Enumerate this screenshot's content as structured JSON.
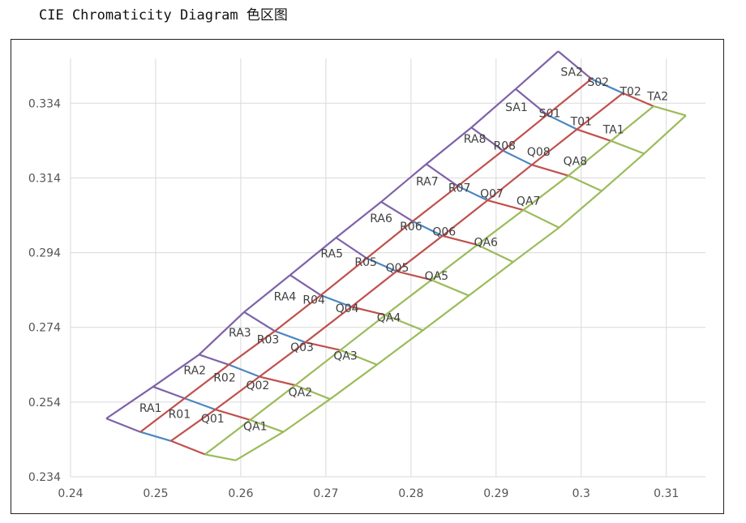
{
  "page": {
    "title": "CIE Chromaticity Diagram 色区图"
  },
  "chart_data": {
    "type": "line",
    "title": "CIE Chromaticity Diagram 色区图",
    "xlabel": "",
    "ylabel": "",
    "xlim": [
      0.24,
      0.315
    ],
    "ylim": [
      0.234,
      0.346
    ],
    "x_ticks": [
      "0.24",
      "0.25",
      "0.26",
      "0.27",
      "0.28",
      "0.29",
      "0.3",
      "0.31"
    ],
    "y_ticks": [
      "0.234",
      "0.254",
      "0.274",
      "0.294",
      "0.314",
      "0.334"
    ],
    "grid": true,
    "colors": {
      "RA": "#7e62a8",
      "R": "#4a86c0",
      "Q": "#c0504d",
      "QA": "#9bbb59",
      "grid": "#d9d9d9",
      "axis": "#d9d9d9"
    },
    "series": [
      {
        "name": "RA",
        "x": [
          0.2442,
          0.2497,
          0.2551,
          0.2604,
          0.2658,
          0.2712,
          0.2765,
          0.2818,
          0.2871,
          0.2923,
          0.2973
        ],
        "y": [
          0.2496,
          0.2581,
          0.2667,
          0.2781,
          0.288,
          0.298,
          0.3076,
          0.3177,
          0.3275,
          0.3378,
          0.3479
        ]
      },
      {
        "name": "R",
        "x": [
          0.2482,
          0.2534,
          0.2586,
          0.264,
          0.2694,
          0.2748,
          0.2802,
          0.2855,
          0.2908,
          0.296,
          0.3012
        ],
        "y": [
          0.246,
          0.255,
          0.264,
          0.273,
          0.2826,
          0.2925,
          0.3024,
          0.3118,
          0.3213,
          0.3309,
          0.3405
        ]
      },
      {
        "name": "Q",
        "x": [
          0.2518,
          0.257,
          0.2622,
          0.2676,
          0.273,
          0.2783,
          0.2837,
          0.289,
          0.2942,
          0.2995,
          0.3049
        ],
        "y": [
          0.2436,
          0.252,
          0.2608,
          0.27,
          0.2795,
          0.289,
          0.2985,
          0.308,
          0.3175,
          0.327,
          0.3367
        ]
      },
      {
        "name": "QA",
        "x": [
          0.2558,
          0.2611,
          0.2664,
          0.2717,
          0.277,
          0.2824,
          0.2878,
          0.2932,
          0.2985,
          0.3035,
          0.3085
        ],
        "y": [
          0.24,
          0.2492,
          0.2585,
          0.2679,
          0.2773,
          0.2867,
          0.2961,
          0.3054,
          0.3146,
          0.3239,
          0.3332
        ]
      },
      {
        "name": "TA",
        "x": [
          0.2594,
          0.265,
          0.2705,
          0.276,
          0.2814,
          0.2868,
          0.292,
          0.2974,
          0.3024,
          0.3074,
          0.3123
        ],
        "y": [
          0.2384,
          0.246,
          0.2548,
          0.264,
          0.2732,
          0.2825,
          0.2915,
          0.3007,
          0.3105,
          0.3205,
          0.3307
        ]
      }
    ],
    "bin_labels": [
      {
        "text": "RA1",
        "x": 0.2494,
        "y": 0.2524
      },
      {
        "text": "R01",
        "x": 0.2528,
        "y": 0.2508
      },
      {
        "text": "Q01",
        "x": 0.2567,
        "y": 0.2496
      },
      {
        "text": "QA1",
        "x": 0.2617,
        "y": 0.2476
      },
      {
        "text": "RA2",
        "x": 0.2546,
        "y": 0.2625
      },
      {
        "text": "R02",
        "x": 0.2581,
        "y": 0.2606
      },
      {
        "text": "Q02",
        "x": 0.262,
        "y": 0.2585
      },
      {
        "text": "QA2",
        "x": 0.267,
        "y": 0.2567
      },
      {
        "text": "RA3",
        "x": 0.2599,
        "y": 0.2726
      },
      {
        "text": "R03",
        "x": 0.2632,
        "y": 0.2708
      },
      {
        "text": "Q03",
        "x": 0.2672,
        "y": 0.2687
      },
      {
        "text": "QA3",
        "x": 0.2723,
        "y": 0.2665
      },
      {
        "text": "RA4",
        "x": 0.2652,
        "y": 0.2823
      },
      {
        "text": "R04",
        "x": 0.2686,
        "y": 0.2814
      },
      {
        "text": "Q04",
        "x": 0.2725,
        "y": 0.2792
      },
      {
        "text": "QA4",
        "x": 0.2774,
        "y": 0.2767
      },
      {
        "text": "RA5",
        "x": 0.2707,
        "y": 0.2938
      },
      {
        "text": "R05",
        "x": 0.2747,
        "y": 0.2915
      },
      {
        "text": "Q05",
        "x": 0.2784,
        "y": 0.29
      },
      {
        "text": "QA5",
        "x": 0.283,
        "y": 0.2878
      },
      {
        "text": "RA6",
        "x": 0.2765,
        "y": 0.3032
      },
      {
        "text": "R06",
        "x": 0.28,
        "y": 0.3011
      },
      {
        "text": "Q06",
        "x": 0.2839,
        "y": 0.2997
      },
      {
        "text": "QA6",
        "x": 0.2888,
        "y": 0.2968
      },
      {
        "text": "RA7",
        "x": 0.2819,
        "y": 0.3131
      },
      {
        "text": "R07",
        "x": 0.2857,
        "y": 0.3114
      },
      {
        "text": "Q07",
        "x": 0.2895,
        "y": 0.3099
      },
      {
        "text": "QA7",
        "x": 0.2938,
        "y": 0.3079
      },
      {
        "text": "RA8",
        "x": 0.2875,
        "y": 0.3245
      },
      {
        "text": "R08",
        "x": 0.291,
        "y": 0.3227
      },
      {
        "text": "Q08",
        "x": 0.295,
        "y": 0.321
      },
      {
        "text": "QA8",
        "x": 0.2993,
        "y": 0.3185
      },
      {
        "text": "SA1",
        "x": 0.2924,
        "y": 0.333
      },
      {
        "text": "S01",
        "x": 0.2963,
        "y": 0.3313
      },
      {
        "text": "T01",
        "x": 0.3,
        "y": 0.3292
      },
      {
        "text": "TA1",
        "x": 0.3038,
        "y": 0.327
      },
      {
        "text": "SA2",
        "x": 0.2989,
        "y": 0.3424
      },
      {
        "text": "S02",
        "x": 0.302,
        "y": 0.3397
      },
      {
        "text": "T02",
        "x": 0.3058,
        "y": 0.3372
      },
      {
        "text": "TA2",
        "x": 0.309,
        "y": 0.3359
      }
    ]
  }
}
